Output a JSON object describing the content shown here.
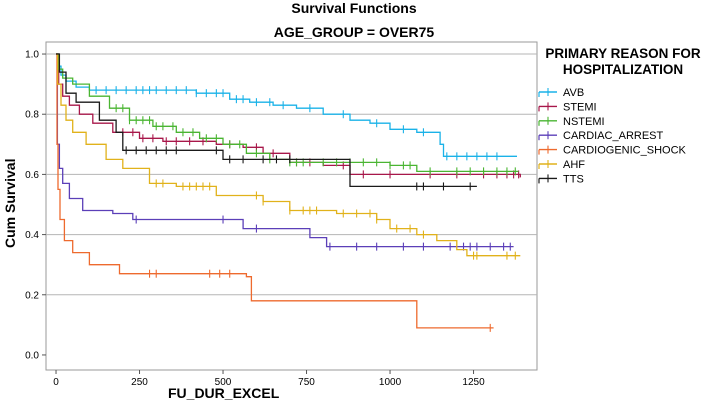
{
  "chart_data": {
    "type": "line",
    "subtype": "kaplan-meier step survival curves",
    "title": "Survival Functions",
    "subtitle": "AGE_GROUP = OVER75",
    "xlabel": "FU_DUR_EXCEL",
    "ylabel": "Cum Survival",
    "xlim": [
      -30,
      1440
    ],
    "ylim": [
      -0.05,
      1.04
    ],
    "xticks": [
      0,
      250,
      500,
      750,
      1000,
      1250
    ],
    "yticks": [
      0.0,
      0.2,
      0.4,
      0.6,
      0.8,
      1.0
    ],
    "ytick_labels": [
      "0.0",
      "0.2",
      "0.4",
      "0.6",
      "0.8",
      "1.0"
    ],
    "grid": "horizontal lines at 0.2 intervals",
    "legend_title": "PRIMARY REASON FOR HOSPITALIZATION",
    "legend_position": "right",
    "series": [
      {
        "name": "AVB",
        "color": "#1ab2e8",
        "steps": [
          [
            0,
            1.0
          ],
          [
            5,
            0.96
          ],
          [
            15,
            0.93
          ],
          [
            30,
            0.91
          ],
          [
            60,
            0.89
          ],
          [
            100,
            0.88
          ],
          [
            420,
            0.87
          ],
          [
            520,
            0.85
          ],
          [
            580,
            0.84
          ],
          [
            650,
            0.83
          ],
          [
            720,
            0.82
          ],
          [
            800,
            0.8
          ],
          [
            880,
            0.78
          ],
          [
            940,
            0.77
          ],
          [
            1000,
            0.75
          ],
          [
            1080,
            0.74
          ],
          [
            1150,
            0.7
          ],
          [
            1160,
            0.66
          ],
          [
            1380,
            0.66
          ]
        ],
        "censors": [
          120,
          150,
          180,
          210,
          240,
          260,
          280,
          300,
          330,
          360,
          390,
          420,
          450,
          480,
          500,
          540,
          560,
          600,
          640,
          680,
          760,
          860,
          960,
          1040,
          1100,
          1170,
          1200,
          1230,
          1260,
          1290,
          1320
        ]
      },
      {
        "name": "STEMI",
        "color": "#a8174a",
        "steps": [
          [
            0,
            1.0
          ],
          [
            8,
            0.9
          ],
          [
            20,
            0.86
          ],
          [
            40,
            0.83
          ],
          [
            70,
            0.8
          ],
          [
            110,
            0.77
          ],
          [
            170,
            0.74
          ],
          [
            250,
            0.72
          ],
          [
            320,
            0.71
          ],
          [
            480,
            0.7
          ],
          [
            560,
            0.69
          ],
          [
            620,
            0.67
          ],
          [
            700,
            0.64
          ],
          [
            800,
            0.63
          ],
          [
            880,
            0.6
          ],
          [
            1140,
            0.6
          ],
          [
            1390,
            0.59
          ]
        ],
        "censors": [
          200,
          230,
          260,
          290,
          330,
          360,
          400,
          440,
          520,
          600,
          650,
          720,
          760,
          860,
          920,
          1000,
          1120,
          1200,
          1280,
          1320,
          1350,
          1370,
          1385
        ]
      },
      {
        "name": "NSTEMI",
        "color": "#4ab532",
        "steps": [
          [
            0,
            1.0
          ],
          [
            8,
            0.95
          ],
          [
            20,
            0.92
          ],
          [
            50,
            0.9
          ],
          [
            100,
            0.86
          ],
          [
            160,
            0.82
          ],
          [
            220,
            0.78
          ],
          [
            290,
            0.76
          ],
          [
            360,
            0.74
          ],
          [
            430,
            0.72
          ],
          [
            500,
            0.7
          ],
          [
            570,
            0.67
          ],
          [
            640,
            0.65
          ],
          [
            700,
            0.64
          ],
          [
            1000,
            0.63
          ],
          [
            1080,
            0.61
          ],
          [
            1385,
            0.61
          ]
        ],
        "censors": [
          180,
          200,
          220,
          240,
          260,
          280,
          300,
          320,
          350,
          380,
          410,
          450,
          480,
          520,
          550,
          600,
          640,
          700,
          720,
          740,
          800,
          840,
          880,
          920,
          960,
          1000,
          1040,
          1060,
          1120,
          1200,
          1240,
          1280,
          1320,
          1350,
          1375
        ]
      },
      {
        "name": "CARDIAC_ARREST",
        "color": "#5b3fb8",
        "steps": [
          [
            0,
            1.0
          ],
          [
            4,
            0.7
          ],
          [
            10,
            0.62
          ],
          [
            20,
            0.57
          ],
          [
            40,
            0.52
          ],
          [
            80,
            0.48
          ],
          [
            170,
            0.47
          ],
          [
            230,
            0.45
          ],
          [
            560,
            0.42
          ],
          [
            760,
            0.39
          ],
          [
            810,
            0.36
          ],
          [
            1370,
            0.36
          ]
        ],
        "censors": [
          240,
          500,
          600,
          820,
          900,
          960,
          1040,
          1100,
          1180,
          1220,
          1240,
          1260,
          1300,
          1340,
          1360
        ]
      },
      {
        "name": "CARDIOGENIC_SHOCK",
        "color": "#ee6a2e",
        "steps": [
          [
            0,
            1.0
          ],
          [
            3,
            0.7
          ],
          [
            6,
            0.55
          ],
          [
            12,
            0.45
          ],
          [
            25,
            0.38
          ],
          [
            50,
            0.34
          ],
          [
            100,
            0.3
          ],
          [
            190,
            0.27
          ],
          [
            570,
            0.26
          ],
          [
            585,
            0.18
          ],
          [
            1080,
            0.09
          ],
          [
            1310,
            0.09
          ]
        ],
        "censors": [
          280,
          300,
          460,
          490,
          520,
          1300
        ]
      },
      {
        "name": "AHF",
        "color": "#e1b21b",
        "steps": [
          [
            0,
            1.0
          ],
          [
            5,
            0.9
          ],
          [
            15,
            0.83
          ],
          [
            30,
            0.78
          ],
          [
            50,
            0.74
          ],
          [
            90,
            0.7
          ],
          [
            150,
            0.65
          ],
          [
            200,
            0.62
          ],
          [
            280,
            0.57
          ],
          [
            360,
            0.56
          ],
          [
            480,
            0.53
          ],
          [
            620,
            0.51
          ],
          [
            700,
            0.48
          ],
          [
            840,
            0.47
          ],
          [
            960,
            0.45
          ],
          [
            1000,
            0.42
          ],
          [
            1080,
            0.4
          ],
          [
            1140,
            0.38
          ],
          [
            1200,
            0.35
          ],
          [
            1230,
            0.33
          ],
          [
            1390,
            0.33
          ]
        ],
        "censors": [
          300,
          320,
          380,
          400,
          420,
          440,
          460,
          600,
          620,
          700,
          740,
          760,
          780,
          860,
          900,
          940,
          960,
          1020,
          1060,
          1100,
          1250,
          1260,
          1350,
          1375
        ]
      },
      {
        "name": "TTS",
        "color": "#1a1a1a",
        "steps": [
          [
            0,
            1.0
          ],
          [
            10,
            0.94
          ],
          [
            30,
            0.87
          ],
          [
            60,
            0.84
          ],
          [
            130,
            0.78
          ],
          [
            180,
            0.74
          ],
          [
            200,
            0.68
          ],
          [
            500,
            0.65
          ],
          [
            880,
            0.56
          ],
          [
            1260,
            0.56
          ]
        ],
        "censors": [
          210,
          240,
          270,
          300,
          330,
          360,
          480,
          520,
          560,
          620,
          660,
          700,
          1080,
          1100,
          1160,
          1240
        ]
      }
    ]
  }
}
